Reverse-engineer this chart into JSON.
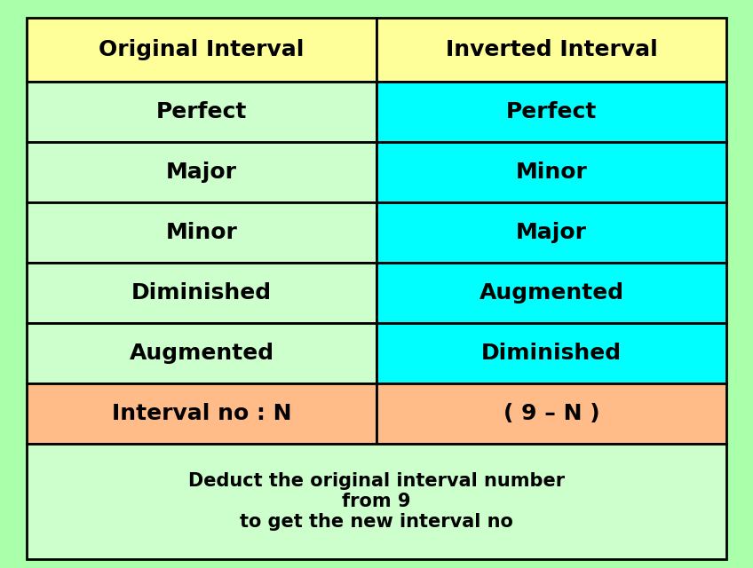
{
  "headers": [
    "Original Interval",
    "Inverted Interval"
  ],
  "rows": [
    [
      "Perfect",
      "Perfect"
    ],
    [
      "Major",
      "Minor"
    ],
    [
      "Minor",
      "Major"
    ],
    [
      "Diminished",
      "Augmented"
    ],
    [
      "Augmented",
      "Diminished"
    ],
    [
      "Interval no : N",
      "( 9 – N )"
    ]
  ],
  "footer_lines": [
    "Deduct the original interval number",
    "from 9",
    "to get the new interval no"
  ],
  "header_bg": "#ffff99",
  "left_col_bg": "#ccffcc",
  "right_col_bg": "#00ffff",
  "last_row_left_bg": "#ffbb88",
  "last_row_right_bg": "#ffbb88",
  "footer_bg": "#ccffcc",
  "border_color": "#000000",
  "text_color": "#000000",
  "header_fontsize": 18,
  "cell_fontsize": 18,
  "footer_fontsize": 15,
  "fig_bg": "#aaffaa"
}
